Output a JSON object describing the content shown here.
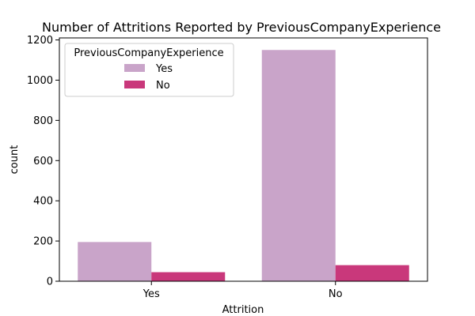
{
  "chart_data": {
    "type": "bar",
    "title": "Number of Attritions Reported by PreviousCompanyExperience",
    "xlabel": "Attrition",
    "ylabel": "count",
    "categories": [
      "Yes",
      "No"
    ],
    "series": [
      {
        "name": "Yes",
        "values": [
          195,
          1150
        ],
        "color": "#c9a4c9"
      },
      {
        "name": "No",
        "values": [
          45,
          80
        ],
        "color": "#c9387b"
      }
    ],
    "ylim": [
      0,
      1210
    ],
    "yticks": [
      0,
      200,
      400,
      600,
      800,
      1000,
      1200
    ],
    "legend": {
      "title": "PreviousCompanyExperience",
      "placement": "top-left"
    },
    "grid": false
  }
}
